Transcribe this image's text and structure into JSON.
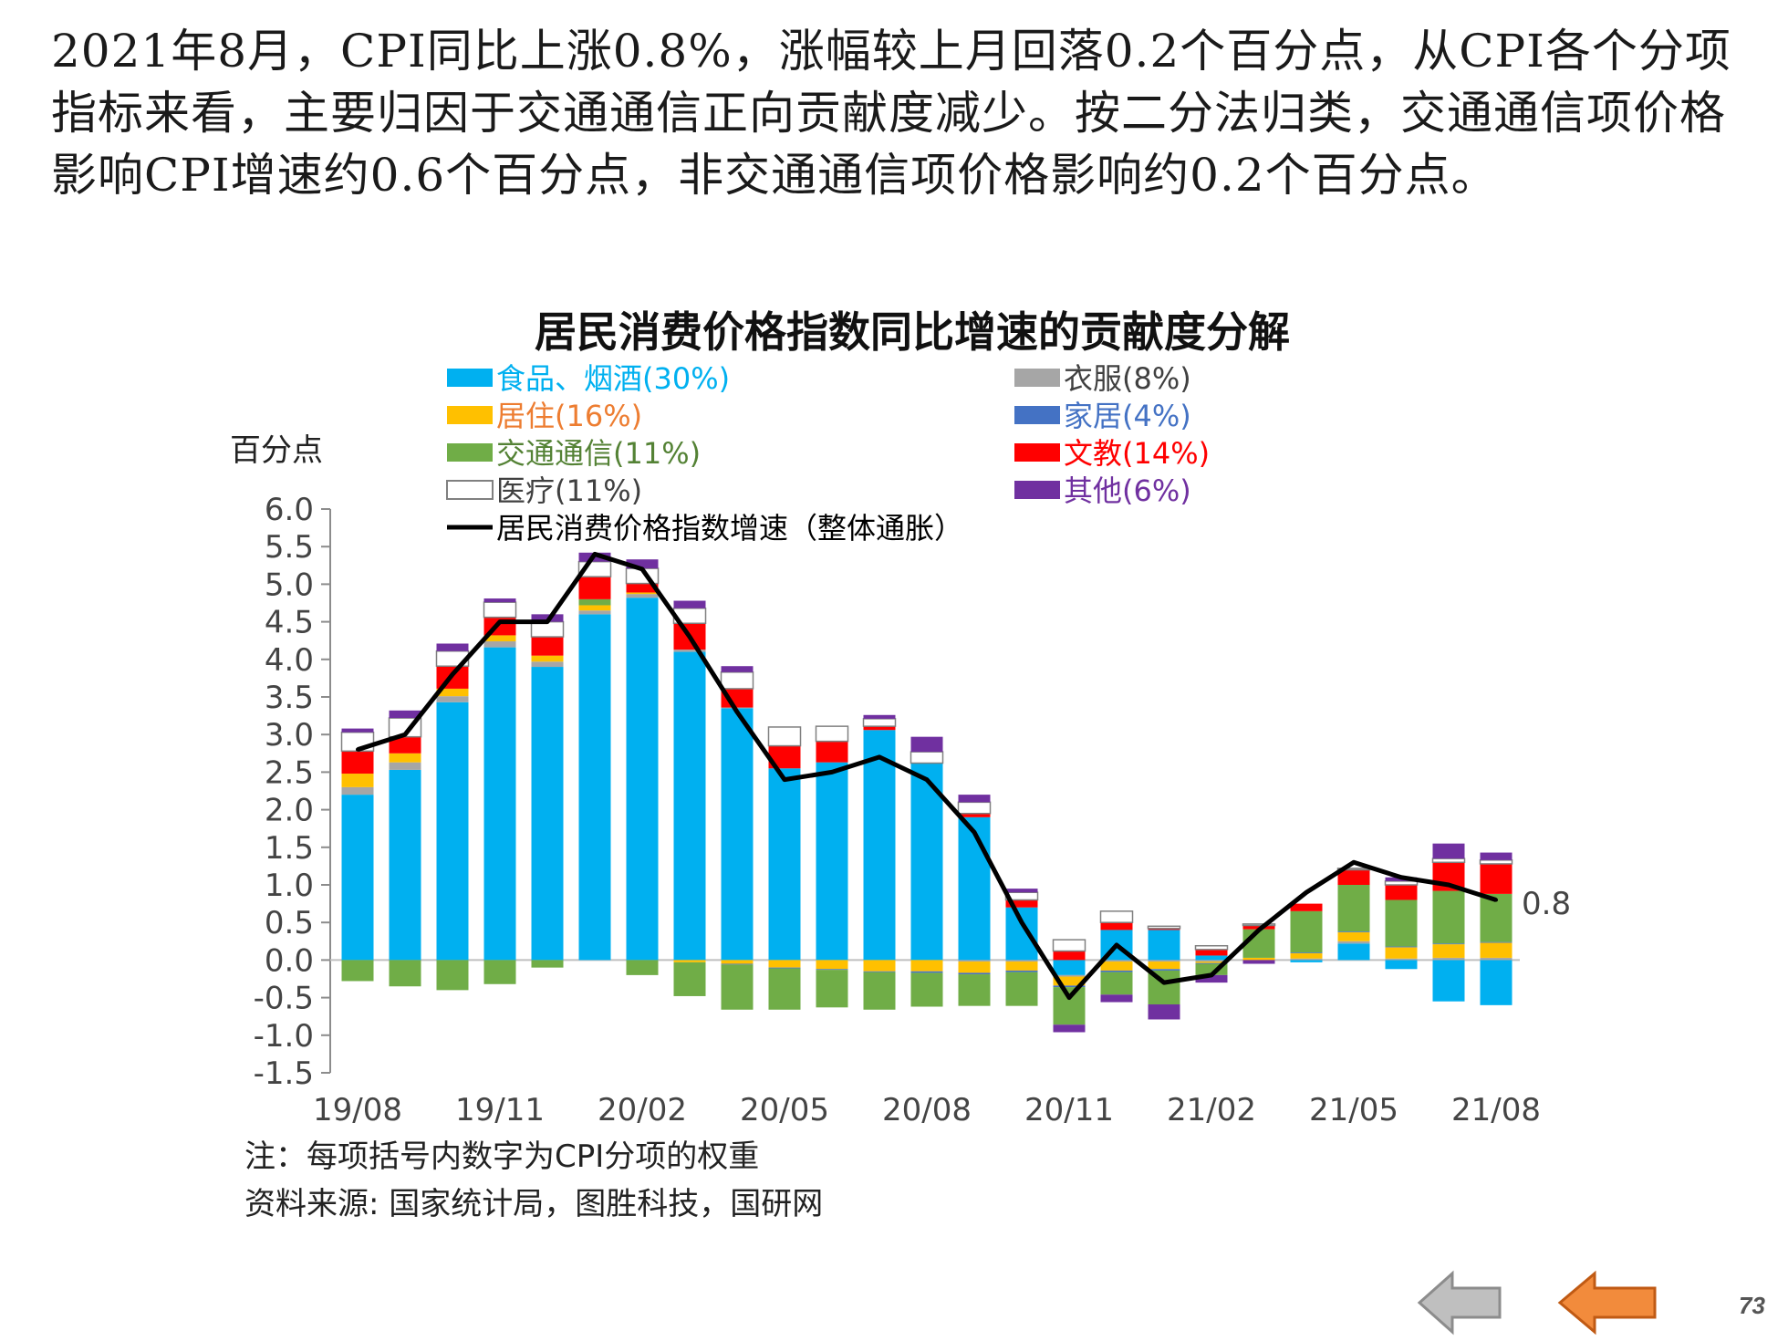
{
  "intro_text": "2021年8月，CPI同比上涨0.8%，涨幅较上月回落0.2个百分点，从CPI各个分项指标来看，主要归因于交通通信正向贡献度减少。按二分法归类，交通通信项价格影响CPI增速约0.6个百分点，非交通通信项价格影响约0.2个百分点。",
  "notes": {
    "note": "注：每项括号内数字为CPI分项的权重",
    "source": "资料来源: 国家统计局，图胜科技，国研网"
  },
  "page_number": "73",
  "nav": {
    "back_icon": "gray-left-arrow-icon",
    "next_icon": "orange-left-arrow-icon",
    "back_color": "#bfbfbf",
    "next_color": "#f28b3c"
  },
  "chart_data": {
    "type": "bar",
    "stacked": true,
    "title": "居民消费价格指数同比增速的贡献度分解",
    "ylabel": "百分点",
    "ylim": [
      -1.5,
      6.0
    ],
    "yticks": [
      "6.0",
      "5.5",
      "5.0",
      "4.5",
      "4.0",
      "3.5",
      "3.0",
      "2.5",
      "2.0",
      "1.5",
      "1.0",
      "0.5",
      "0.0",
      "-0.5",
      "-1.0",
      "-1.5"
    ],
    "xtick_labels": [
      "19/08",
      "19/11",
      "20/02",
      "20/05",
      "20/08",
      "20/11",
      "21/02",
      "21/05",
      "21/08"
    ],
    "categories": [
      "19/08",
      "19/09",
      "19/10",
      "19/11",
      "19/12",
      "20/01",
      "20/02",
      "20/03",
      "20/04",
      "20/05",
      "20/06",
      "20/07",
      "20/08",
      "20/09",
      "20/10",
      "20/11",
      "20/12",
      "21/01",
      "21/02",
      "21/03",
      "21/04",
      "21/05",
      "21/06",
      "21/07",
      "21/08"
    ],
    "series": [
      {
        "name": "食品、烟酒(30%)",
        "color": "#00b0f0",
        "text_color": "#00b0f0",
        "values": [
          2.2,
          2.53,
          3.43,
          4.16,
          3.9,
          4.6,
          4.82,
          4.1,
          3.35,
          2.55,
          2.63,
          3.06,
          2.62,
          1.9,
          0.7,
          -0.2,
          0.4,
          0.4,
          0.06,
          0.0,
          -0.03,
          0.22,
          -0.12,
          -0.55,
          -0.6
        ]
      },
      {
        "name": "衣服(8%)",
        "color": "#a6a6a6",
        "text_color": "#404040",
        "values": [
          0.1,
          0.1,
          0.08,
          0.08,
          0.07,
          0.05,
          0.05,
          0.03,
          0.01,
          0.0,
          0.0,
          0.0,
          0.0,
          -0.02,
          -0.02,
          -0.02,
          -0.02,
          -0.02,
          -0.02,
          0.0,
          0.02,
          0.03,
          0.02,
          0.03,
          0.03
        ]
      },
      {
        "name": "居住(16%)",
        "color": "#ffc000",
        "text_color": "#ed7d31",
        "values": [
          0.18,
          0.12,
          0.1,
          0.08,
          0.08,
          0.07,
          0.02,
          -0.03,
          -0.05,
          -0.1,
          -0.12,
          -0.15,
          -0.15,
          -0.15,
          -0.12,
          -0.12,
          -0.12,
          -0.1,
          -0.02,
          0.03,
          0.07,
          0.12,
          0.15,
          0.18,
          0.2
        ]
      },
      {
        "name": "家居(4%)",
        "color": "#4472c4",
        "text_color": "#4472c4",
        "values": [
          0.0,
          0.0,
          0.0,
          0.0,
          0.0,
          0.0,
          0.0,
          0.0,
          -0.01,
          -0.01,
          -0.01,
          -0.01,
          -0.02,
          -0.02,
          -0.02,
          -0.02,
          -0.02,
          -0.02,
          -0.01,
          0.0,
          0.01,
          0.01,
          0.01,
          0.01,
          0.01
        ]
      },
      {
        "name": "交通通信(11%)",
        "color": "#70ad47",
        "text_color": "#548235",
        "values": [
          -0.28,
          -0.35,
          -0.4,
          -0.32,
          -0.1,
          0.08,
          -0.2,
          -0.45,
          -0.6,
          -0.55,
          -0.5,
          -0.5,
          -0.45,
          -0.42,
          -0.45,
          -0.5,
          -0.3,
          -0.45,
          -0.15,
          0.38,
          0.55,
          0.62,
          0.62,
          0.7,
          0.64
        ]
      },
      {
        "name": "文教(14%)",
        "color": "#ff0000",
        "text_color": "#ff0000",
        "values": [
          0.3,
          0.22,
          0.3,
          0.24,
          0.25,
          0.3,
          0.12,
          0.35,
          0.25,
          0.3,
          0.28,
          0.05,
          0.0,
          0.05,
          0.1,
          0.12,
          0.1,
          0.02,
          0.08,
          0.05,
          0.1,
          0.2,
          0.2,
          0.38,
          0.4
        ]
      },
      {
        "name": "医疗(11%)",
        "color": "#ffffff",
        "text_color": "#404040",
        "stroke": "#808080",
        "values": [
          0.25,
          0.25,
          0.2,
          0.2,
          0.2,
          0.2,
          0.2,
          0.2,
          0.22,
          0.25,
          0.2,
          0.1,
          0.15,
          0.15,
          0.1,
          0.15,
          0.15,
          0.03,
          0.05,
          0.02,
          0.0,
          0.02,
          0.05,
          0.05,
          0.05
        ]
      },
      {
        "name": "其他(6%)",
        "color": "#7030a0",
        "text_color": "#7030a0",
        "values": [
          0.05,
          0.1,
          0.1,
          0.05,
          0.1,
          0.12,
          0.12,
          0.1,
          0.08,
          0.0,
          0.0,
          0.05,
          0.2,
          0.1,
          0.05,
          -0.1,
          -0.1,
          -0.2,
          -0.1,
          -0.05,
          0.0,
          0.0,
          0.05,
          0.2,
          0.1
        ]
      }
    ],
    "line": {
      "name": "居民消费价格指数增速（整体通胀）",
      "color": "#000000",
      "text_color": "#000000",
      "values": [
        2.8,
        3.0,
        3.8,
        4.5,
        4.5,
        5.4,
        5.2,
        4.3,
        3.3,
        2.4,
        2.5,
        2.7,
        2.4,
        1.7,
        0.5,
        -0.5,
        0.2,
        -0.3,
        -0.2,
        0.4,
        0.9,
        1.3,
        1.1,
        1.0,
        0.8
      ]
    },
    "end_label": "0.8",
    "grid": false,
    "legend_placement": "top"
  }
}
